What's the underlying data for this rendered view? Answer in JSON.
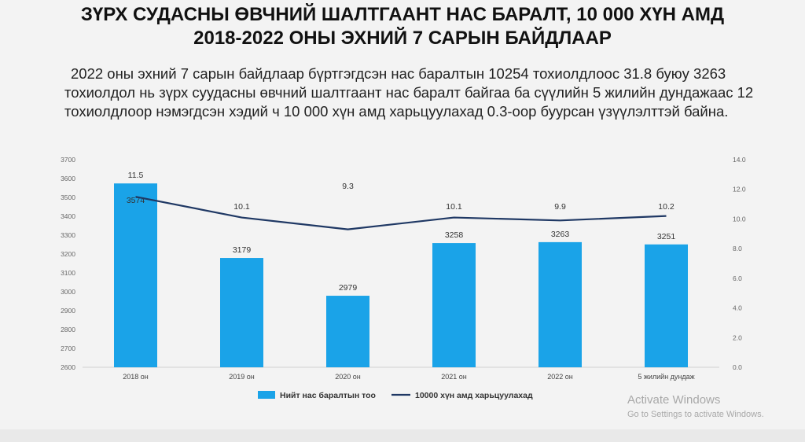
{
  "title": {
    "line1": "ЗҮРХ СУДАСНЫ ӨВЧНИЙ ШАЛТГААНТ НАС БАРАЛТ, 10 000 ХҮН АМД",
    "line2": "2018-2022 ОНЫ ЭХНИЙ 7 САРЫН БАЙДЛААР"
  },
  "paragraph": {
    "line1": "2022 оны эхний 7 сарын байдлаар бүртгэгдсэн нас баралтын 10254 тохиолдлоос 31.8 буюу 3263",
    "line2": "тохиолдол нь зүрх суудасны өвчний шалтгаант нас баралт байгаа ба сүүлийн 5 жилийн дундажаас 12",
    "line3": "тохиолдлоор нэмэгдсэн хэдий ч 10 000 хүн амд харьцуулахад 0.3-оор буурсан үзүүлэлттэй байна."
  },
  "chart_data": {
    "type": "bar",
    "categories": [
      "2018 он",
      "2019 он",
      "2020 он",
      "2021 он",
      "2022 он",
      "5 жилийн дундаж"
    ],
    "series": [
      {
        "name": "Нийт нас баралтын тоо",
        "type": "bar",
        "axis": "left",
        "color": "#1aa3e8",
        "values": [
          3574,
          3179,
          2979,
          3258,
          3263,
          3251
        ],
        "labels": [
          "3574",
          "3179",
          "2979",
          "3258",
          "3263",
          "3251"
        ]
      },
      {
        "name": "10000 хүн амд харьцуулахад",
        "type": "line",
        "axis": "right",
        "color": "#1f3864",
        "values": [
          11.5,
          10.1,
          9.3,
          10.1,
          9.9,
          10.2
        ],
        "labels": [
          "11.5",
          "10.1",
          "9.3",
          "10.1",
          "9.9",
          "10.2"
        ]
      }
    ],
    "left_axis": {
      "min": 2600,
      "max": 3700,
      "step": 100,
      "ticks": [
        "2600",
        "2700",
        "2800",
        "2900",
        "3000",
        "3100",
        "3200",
        "3300",
        "3400",
        "3500",
        "3600",
        "3700"
      ]
    },
    "right_axis": {
      "min": 0,
      "max": 14,
      "step": 2,
      "ticks": [
        "0.0",
        "2.0",
        "4.0",
        "6.0",
        "8.0",
        "10.0",
        "12.0",
        "14.0"
      ]
    },
    "grid": false,
    "legend_position": "bottom"
  },
  "watermark": {
    "line1": "Activate Windows",
    "line2": "Go to Settings to activate Windows."
  }
}
